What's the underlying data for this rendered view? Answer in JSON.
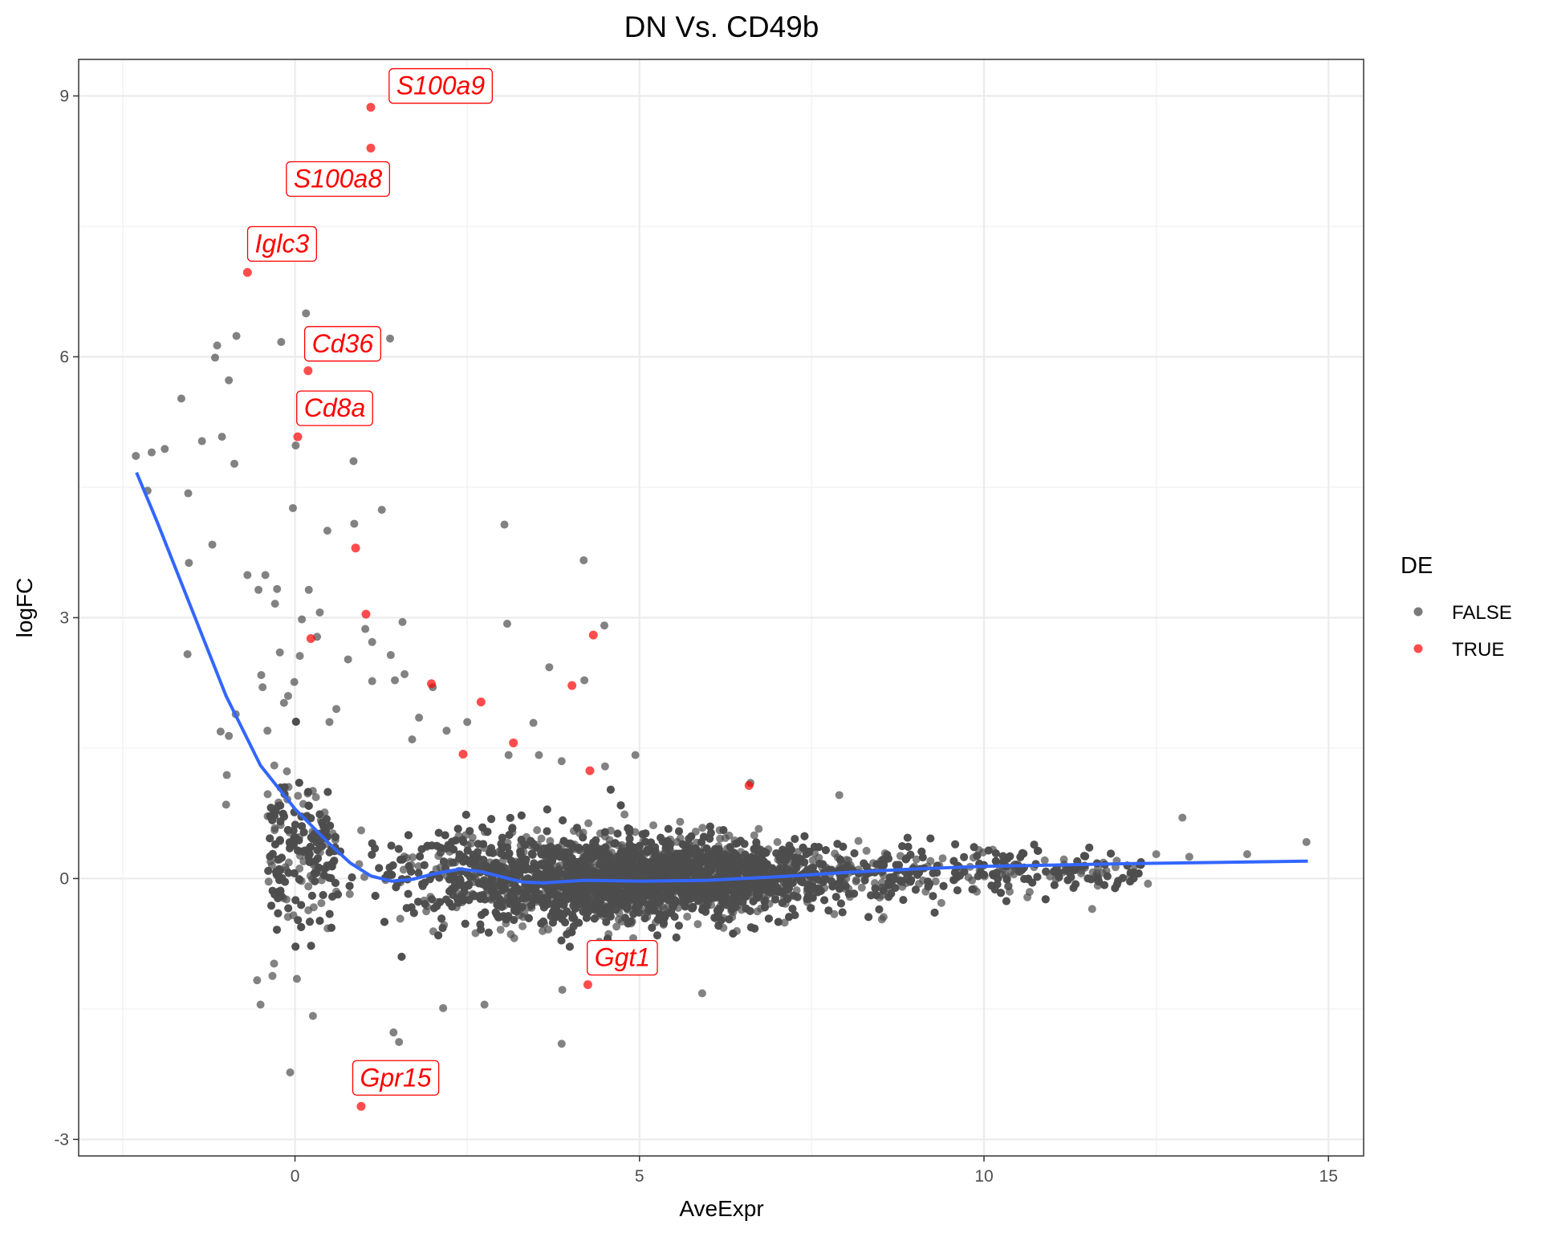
{
  "chart_data": {
    "type": "scatter",
    "title": "DN Vs. CD49b",
    "xlabel": "AveExpr",
    "ylabel": "logFC",
    "xlim": [
      -3.14,
      15.51
    ],
    "ylim": [
      -3.19,
      9.42
    ],
    "x_ticks": [
      0,
      5,
      10,
      15
    ],
    "x_tick_labels": [
      "0",
      "5",
      "10",
      "15"
    ],
    "y_ticks": [
      -3,
      0,
      3,
      6,
      9
    ],
    "y_tick_labels": [
      "-3",
      "0",
      "3",
      "6",
      "9"
    ],
    "grid": true,
    "legend": {
      "title": "DE",
      "position": "right",
      "entries": [
        "FALSE",
        "TRUE"
      ]
    },
    "colors": {
      "FALSE": "#4d4d4d",
      "TRUE": "#ff0000",
      "trend": "#3366ff",
      "label": "#ff0000"
    },
    "labeled_genes": [
      {
        "gene": "S100a9",
        "x": 1.1,
        "y": 8.87
      },
      {
        "gene": "S100a8",
        "x": 1.1,
        "y": 8.4
      },
      {
        "gene": "Iglc3",
        "x": -0.69,
        "y": 6.97
      },
      {
        "gene": "Cd36",
        "x": 0.19,
        "y": 5.84
      },
      {
        "gene": "Cd8a",
        "x": 0.04,
        "y": 5.08
      },
      {
        "gene": "Ggt1",
        "x": 4.25,
        "y": -1.22
      },
      {
        "gene": "Gpr15",
        "x": 0.96,
        "y": -2.62
      }
    ],
    "de_true_points": [
      [
        0.88,
        3.8
      ],
      [
        1.03,
        3.04
      ],
      [
        0.23,
        2.76
      ],
      [
        1.98,
        2.24
      ],
      [
        4.33,
        2.8
      ],
      [
        4.02,
        2.22
      ],
      [
        2.7,
        2.03
      ],
      [
        3.17,
        1.56
      ],
      [
        2.44,
        1.43
      ],
      [
        4.28,
        1.24
      ],
      [
        6.59,
        1.07
      ]
    ],
    "de_false_outliers": [
      [
        -2.31,
        4.86
      ],
      [
        -2.08,
        4.9
      ],
      [
        -1.89,
        4.94
      ],
      [
        -2.14,
        4.46
      ],
      [
        -1.65,
        5.52
      ],
      [
        -1.35,
        5.03
      ],
      [
        -1.06,
        5.08
      ],
      [
        -0.88,
        4.77
      ],
      [
        -1.13,
        6.13
      ],
      [
        -1.16,
        5.99
      ],
      [
        -0.85,
        6.24
      ],
      [
        -0.96,
        5.73
      ],
      [
        -0.2,
        6.17
      ],
      [
        0.16,
        6.5
      ],
      [
        1.38,
        6.21
      ],
      [
        0.01,
        4.98
      ],
      [
        0.85,
        4.8
      ],
      [
        -0.03,
        4.26
      ],
      [
        1.26,
        4.24
      ],
      [
        0.86,
        4.08
      ],
      [
        3.04,
        4.07
      ],
      [
        4.19,
        3.66
      ],
      [
        -1.55,
        4.43
      ],
      [
        -1.54,
        3.63
      ],
      [
        -1.2,
        3.84
      ],
      [
        -0.69,
        3.49
      ],
      [
        -0.43,
        3.49
      ],
      [
        -0.26,
        3.33
      ],
      [
        -0.53,
        3.32
      ],
      [
        -0.29,
        3.16
      ],
      [
        0.2,
        3.32
      ],
      [
        0.47,
        4.0
      ],
      [
        0.36,
        3.06
      ],
      [
        0.1,
        2.98
      ],
      [
        3.08,
        2.93
      ],
      [
        4.49,
        2.91
      ],
      [
        -1.56,
        2.58
      ],
      [
        1.56,
        2.95
      ],
      [
        0.32,
        2.78
      ],
      [
        1.02,
        2.87
      ],
      [
        1.12,
        2.72
      ],
      [
        1.39,
        2.57
      ],
      [
        0.77,
        2.52
      ],
      [
        0.07,
        2.56
      ],
      [
        -0.22,
        2.6
      ],
      [
        -0.49,
        2.34
      ],
      [
        -0.47,
        2.2
      ],
      [
        -0.01,
        2.26
      ],
      [
        1.59,
        2.35
      ],
      [
        1.45,
        2.28
      ],
      [
        1.12,
        2.27
      ],
      [
        3.69,
        2.43
      ],
      [
        4.2,
        2.28
      ],
      [
        2.0,
        2.2
      ],
      [
        -0.1,
        2.1
      ],
      [
        -0.16,
        2.02
      ],
      [
        -0.86,
        1.89
      ],
      [
        -1.08,
        1.69
      ],
      [
        -0.96,
        1.64
      ],
      [
        -0.99,
        1.19
      ],
      [
        -1.0,
        0.85
      ],
      [
        3.46,
        1.79
      ],
      [
        3.1,
        1.42
      ],
      [
        3.54,
        1.42
      ],
      [
        3.87,
        1.35
      ],
      [
        4.5,
        1.29
      ],
      [
        4.94,
        1.42
      ],
      [
        3.88,
        -1.28
      ],
      [
        5.91,
        -1.32
      ],
      [
        3.87,
        -1.9
      ],
      [
        1.43,
        -1.77
      ],
      [
        1.51,
        -1.88
      ],
      [
        -0.07,
        -2.23
      ],
      [
        0.26,
        -1.58
      ],
      [
        2.75,
        -1.45
      ],
      [
        2.15,
        -1.49
      ],
      [
        -0.5,
        -1.45
      ],
      [
        -0.55,
        -1.17
      ],
      [
        12.88,
        0.7
      ],
      [
        12.98,
        0.25
      ],
      [
        13.82,
        0.28
      ],
      [
        14.68,
        0.42
      ],
      [
        12.38,
        -0.06
      ],
      [
        12.5,
        0.28
      ],
      [
        11.57,
        -0.35
      ],
      [
        6.61,
        1.1
      ],
      [
        7.9,
        0.96
      ],
      [
        -0.4,
        1.7
      ],
      [
        -0.3,
        1.3
      ],
      [
        0.5,
        1.8
      ],
      [
        0.6,
        1.95
      ],
      [
        1.8,
        1.85
      ],
      [
        2.5,
        1.8
      ],
      [
        2.2,
        1.7
      ],
      [
        1.7,
        1.6
      ]
    ],
    "trend_line": {
      "x": [
        -2.3,
        -2.0,
        -1.5,
        -1.0,
        -0.5,
        0.0,
        0.5,
        0.8,
        1.1,
        1.4,
        1.7,
        2.0,
        2.4,
        2.7,
        3.0,
        3.3,
        3.6,
        4.2,
        5.0,
        6.0,
        7.0,
        8.0,
        9.0,
        10.0,
        12.0,
        14.7
      ],
      "y": [
        4.67,
        4.1,
        3.1,
        2.1,
        1.3,
        0.8,
        0.4,
        0.18,
        0.03,
        -0.03,
        -0.01,
        0.05,
        0.11,
        0.08,
        0.02,
        -0.04,
        -0.05,
        -0.02,
        -0.03,
        -0.02,
        0.02,
        0.07,
        0.11,
        0.14,
        0.17,
        0.2
      ]
    }
  }
}
